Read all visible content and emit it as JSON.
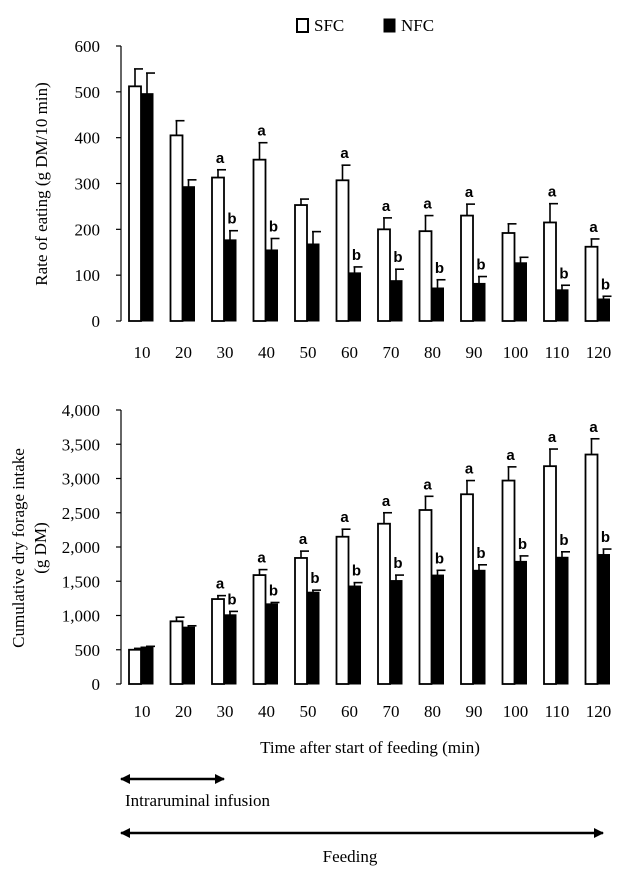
{
  "legend": {
    "sfc_label": "SFC",
    "nfc_label": "NFC",
    "placement": "top-center"
  },
  "colors": {
    "sfc_fill": "#ffffff",
    "nfc_fill": "#000000",
    "stroke": "#000000"
  },
  "xlabel": "Time after start of feeding (min)",
  "annotations": {
    "infusion_label": "Intraruminal infusion",
    "feeding_label": "Feeding"
  },
  "chart_data": [
    {
      "type": "bar",
      "ylabel": "Rate of eating (g DM/10 min)",
      "ylim": [
        0,
        600
      ],
      "yticks": [
        0,
        100,
        200,
        300,
        400,
        500,
        600
      ],
      "ytick_labels": [
        "0",
        "100",
        "200",
        "300",
        "400",
        "500",
        "600"
      ],
      "categories": [
        "10",
        "20",
        "30",
        "40",
        "50",
        "60",
        "70",
        "80",
        "90",
        "100",
        "110",
        "120"
      ],
      "series": [
        {
          "name": "SFC",
          "values": [
            512,
            405,
            313,
            352,
            253,
            307,
            200,
            196,
            230,
            192,
            215,
            162
          ],
          "errors": [
            38,
            32,
            17,
            37,
            13,
            33,
            25,
            34,
            25,
            20,
            41,
            17
          ],
          "sig": [
            "",
            "",
            "a",
            "a",
            "",
            "a",
            "a",
            "a",
            "a",
            "",
            "a",
            "a"
          ]
        },
        {
          "name": "NFC",
          "values": [
            496,
            293,
            177,
            155,
            168,
            105,
            88,
            72,
            82,
            127,
            68,
            48
          ],
          "errors": [
            45,
            15,
            20,
            25,
            27,
            13,
            25,
            18,
            15,
            12,
            10,
            6
          ],
          "sig": [
            "",
            "",
            "b",
            "b",
            "",
            "b",
            "b",
            "b",
            "b",
            "",
            "b",
            "b"
          ]
        }
      ]
    },
    {
      "type": "bar",
      "ylabel": "Cumulative dry forage intake (g DM)",
      "ylim": [
        0,
        4000
      ],
      "yticks": [
        0,
        500,
        1000,
        1500,
        2000,
        2500,
        3000,
        3500,
        4000
      ],
      "ytick_labels": [
        "0",
        "500",
        "1,000",
        "1,500",
        "2,000",
        "2,500",
        "3,000",
        "3,500",
        "4,000"
      ],
      "categories": [
        "10",
        "20",
        "30",
        "40",
        "50",
        "60",
        "70",
        "80",
        "90",
        "100",
        "110",
        "120"
      ],
      "series": [
        {
          "name": "SFC",
          "values": [
            500,
            915,
            1240,
            1590,
            1840,
            2150,
            2340,
            2540,
            2770,
            2970,
            3180,
            3350
          ],
          "errors": [
            20,
            60,
            50,
            80,
            100,
            110,
            160,
            200,
            200,
            200,
            250,
            230
          ],
          "sig": [
            "",
            "",
            "a",
            "a",
            "a",
            "a",
            "a",
            "a",
            "a",
            "a",
            "a",
            "a"
          ]
        },
        {
          "name": "NFC",
          "values": [
            540,
            830,
            1010,
            1170,
            1340,
            1430,
            1510,
            1590,
            1660,
            1790,
            1850,
            1890
          ],
          "errors": [
            10,
            20,
            50,
            20,
            30,
            50,
            80,
            70,
            80,
            80,
            80,
            80
          ],
          "sig": [
            "",
            "",
            "b",
            "b",
            "b",
            "b",
            "b",
            "b",
            "b",
            "b",
            "b",
            "b"
          ]
        }
      ]
    }
  ]
}
